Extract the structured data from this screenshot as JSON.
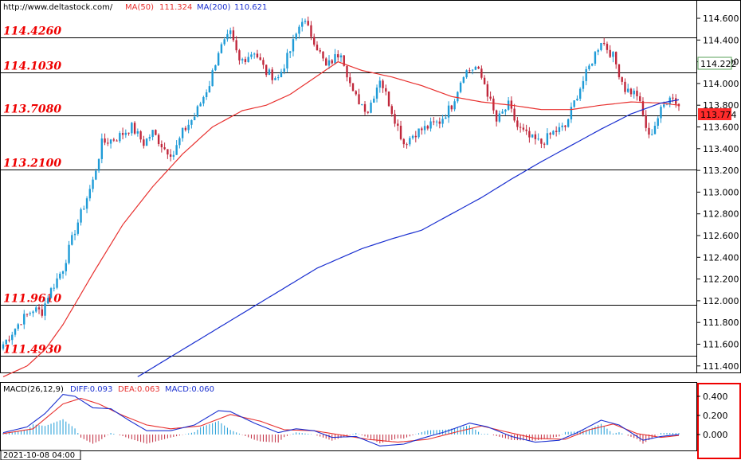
{
  "header": {
    "source_url": "http://www.deltastock.com/",
    "ma50_label": "MA(50)",
    "ma50_value": "111.324",
    "ma200_label": "MA(200)",
    "ma200_value": "110.621"
  },
  "macd_header": {
    "label": "MACD(26,12,9)",
    "diff": "DIFF:0.093",
    "dea": "DEA:0.063",
    "macd": "MACD:0.060"
  },
  "date_label": "2021-10-08 04:00",
  "colors": {
    "up_candle": "#1e9bd7",
    "down_candle": "#c0283c",
    "ma50": "#e8312f",
    "ma200": "#1a2fd0",
    "levels": "#ee0000",
    "price_box_red": "#ff2b2b",
    "price_box_green": "#58a058",
    "macd_highlight": "#ee0000"
  },
  "chart_data": [
    {
      "type": "candlestick",
      "ylim": [
        111.3,
        114.75
      ],
      "yticks": [
        "114.600",
        "114.400",
        "114.200",
        "114.000",
        "113.800",
        "113.600",
        "113.400",
        "113.200",
        "113.000",
        "112.800",
        "112.600",
        "112.400",
        "112.200",
        "112.000",
        "111.800",
        "111.600",
        "111.400"
      ],
      "levels": [
        "114.4260",
        "114.1030",
        "113.7080",
        "113.2100",
        "111.9610",
        "111.4930"
      ],
      "last_price": "113.774",
      "marked_price": "114.222",
      "anchors": [
        [
          0,
          111.6
        ],
        [
          6,
          111.82
        ],
        [
          10,
          111.92
        ],
        [
          13,
          111.9
        ],
        [
          15,
          112.05
        ],
        [
          20,
          112.3
        ],
        [
          24,
          112.65
        ],
        [
          30,
          113.1
        ],
        [
          33,
          113.45
        ],
        [
          38,
          113.5
        ],
        [
          43,
          113.6
        ],
        [
          47,
          113.45
        ],
        [
          50,
          113.55
        ],
        [
          54,
          113.4
        ],
        [
          57,
          113.35
        ],
        [
          60,
          113.55
        ],
        [
          64,
          113.7
        ],
        [
          69,
          114.0
        ],
        [
          72,
          114.3
        ],
        [
          76,
          114.45
        ],
        [
          79,
          114.2
        ],
        [
          84,
          114.3
        ],
        [
          88,
          114.1
        ],
        [
          92,
          114.05
        ],
        [
          96,
          114.3
        ],
        [
          100,
          114.6
        ],
        [
          104,
          114.4
        ],
        [
          108,
          114.15
        ],
        [
          113,
          114.3
        ],
        [
          117,
          113.9
        ],
        [
          122,
          113.75
        ],
        [
          126,
          114.05
        ],
        [
          130,
          113.75
        ],
        [
          134,
          113.45
        ],
        [
          138,
          113.55
        ],
        [
          142,
          113.6
        ],
        [
          146,
          113.65
        ],
        [
          150,
          113.8
        ],
        [
          154,
          114.1
        ],
        [
          158,
          114.15
        ],
        [
          161,
          114.0
        ],
        [
          165,
          113.65
        ],
        [
          169,
          113.8
        ],
        [
          172,
          113.6
        ],
        [
          176,
          113.5
        ],
        [
          180,
          113.45
        ],
        [
          184,
          113.55
        ],
        [
          188,
          113.6
        ],
        [
          192,
          113.9
        ],
        [
          196,
          114.15
        ],
        [
          200,
          114.4
        ],
        [
          204,
          114.25
        ],
        [
          208,
          113.95
        ],
        [
          212,
          113.9
        ],
        [
          216,
          113.5
        ],
        [
          220,
          113.75
        ],
        [
          223,
          113.9
        ],
        [
          226,
          113.8
        ]
      ],
      "ma50_anchors": [
        [
          0,
          111.3
        ],
        [
          8,
          111.4
        ],
        [
          14,
          111.55
        ],
        [
          20,
          111.78
        ],
        [
          30,
          112.25
        ],
        [
          40,
          112.7
        ],
        [
          50,
          113.05
        ],
        [
          60,
          113.35
        ],
        [
          70,
          113.6
        ],
        [
          80,
          113.75
        ],
        [
          88,
          113.8
        ],
        [
          96,
          113.9
        ],
        [
          104,
          114.05
        ],
        [
          112,
          114.2
        ],
        [
          120,
          114.12
        ],
        [
          130,
          114.06
        ],
        [
          140,
          113.98
        ],
        [
          150,
          113.88
        ],
        [
          160,
          113.83
        ],
        [
          170,
          113.8
        ],
        [
          180,
          113.76
        ],
        [
          190,
          113.76
        ],
        [
          200,
          113.8
        ],
        [
          210,
          113.83
        ],
        [
          220,
          113.82
        ],
        [
          226,
          113.8
        ]
      ],
      "ma200_anchors": [
        [
          45,
          111.3
        ],
        [
          60,
          111.55
        ],
        [
          75,
          111.8
        ],
        [
          90,
          112.05
        ],
        [
          105,
          112.3
        ],
        [
          120,
          112.48
        ],
        [
          130,
          112.57
        ],
        [
          140,
          112.65
        ],
        [
          150,
          112.8
        ],
        [
          160,
          112.95
        ],
        [
          170,
          113.12
        ],
        [
          180,
          113.28
        ],
        [
          190,
          113.43
        ],
        [
          200,
          113.58
        ],
        [
          210,
          113.72
        ],
        [
          220,
          113.82
        ],
        [
          226,
          113.85
        ]
      ]
    },
    {
      "type": "macd",
      "ylim": [
        -0.15,
        0.55
      ],
      "yticks": [
        "0.400",
        "0.200",
        "0.000"
      ],
      "diff_anchors": [
        [
          0,
          0.02
        ],
        [
          8,
          0.08
        ],
        [
          14,
          0.22
        ],
        [
          20,
          0.42
        ],
        [
          24,
          0.4
        ],
        [
          30,
          0.28
        ],
        [
          36,
          0.27
        ],
        [
          42,
          0.15
        ],
        [
          48,
          0.04
        ],
        [
          56,
          0.04
        ],
        [
          64,
          0.1
        ],
        [
          72,
          0.25
        ],
        [
          76,
          0.24
        ],
        [
          84,
          0.12
        ],
        [
          92,
          0.02
        ],
        [
          98,
          0.06
        ],
        [
          104,
          0.04
        ],
        [
          110,
          -0.03
        ],
        [
          118,
          -0.02
        ],
        [
          126,
          -0.12
        ],
        [
          134,
          -0.1
        ],
        [
          140,
          -0.04
        ],
        [
          148,
          0.03
        ],
        [
          156,
          0.12
        ],
        [
          162,
          0.08
        ],
        [
          170,
          -0.02
        ],
        [
          178,
          -0.08
        ],
        [
          186,
          -0.06
        ],
        [
          192,
          0.02
        ],
        [
          200,
          0.15
        ],
        [
          206,
          0.1
        ],
        [
          214,
          -0.06
        ],
        [
          220,
          -0.02
        ],
        [
          226,
          0.0
        ]
      ],
      "dea_anchors": [
        [
          0,
          0.01
        ],
        [
          10,
          0.06
        ],
        [
          20,
          0.32
        ],
        [
          26,
          0.38
        ],
        [
          32,
          0.32
        ],
        [
          40,
          0.2
        ],
        [
          48,
          0.1
        ],
        [
          56,
          0.06
        ],
        [
          66,
          0.09
        ],
        [
          76,
          0.21
        ],
        [
          86,
          0.14
        ],
        [
          94,
          0.05
        ],
        [
          104,
          0.04
        ],
        [
          112,
          0.0
        ],
        [
          122,
          -0.05
        ],
        [
          132,
          -0.08
        ],
        [
          142,
          -0.05
        ],
        [
          152,
          0.03
        ],
        [
          160,
          0.09
        ],
        [
          168,
          0.03
        ],
        [
          178,
          -0.04
        ],
        [
          188,
          -0.05
        ],
        [
          196,
          0.05
        ],
        [
          204,
          0.11
        ],
        [
          212,
          0.01
        ],
        [
          220,
          -0.03
        ],
        [
          226,
          -0.01
        ]
      ]
    }
  ]
}
